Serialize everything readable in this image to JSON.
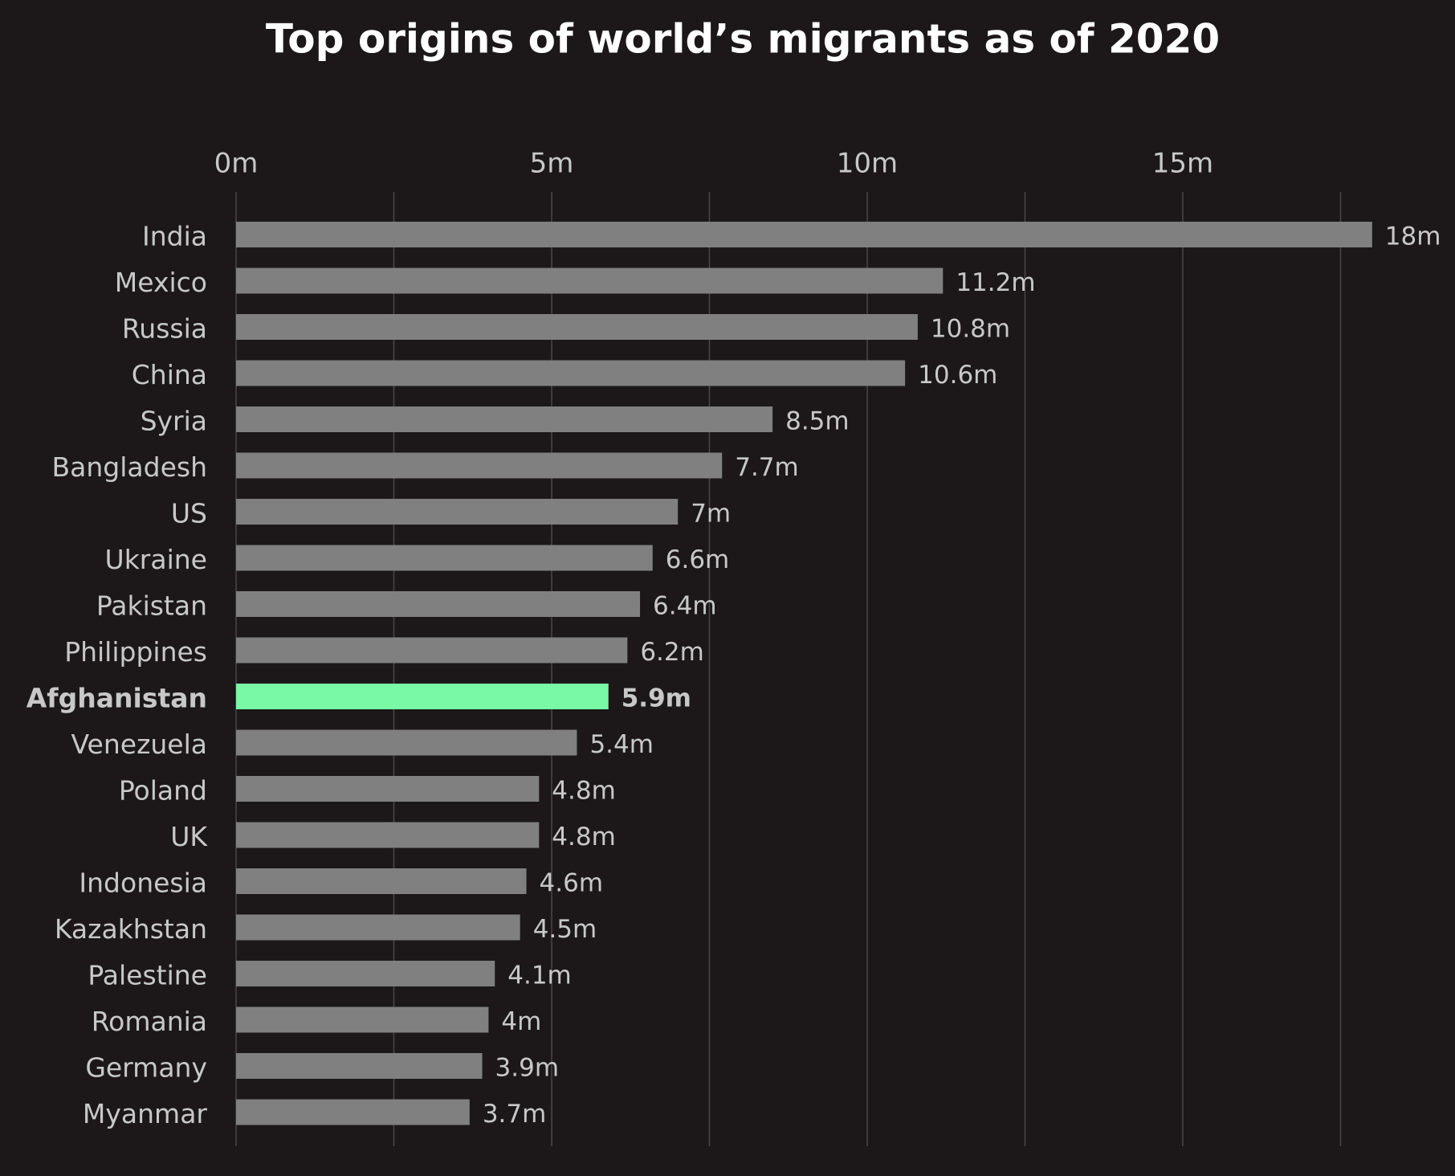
{
  "chart_data": {
    "type": "barh",
    "title": "Top origins of world’s migrants as of 2020",
    "categories": [
      "India",
      "Mexico",
      "Russia",
      "China",
      "Syria",
      "Bangladesh",
      "US",
      "Ukraine",
      "Pakistan",
      "Philippines",
      "Afghanistan",
      "Venezuela",
      "Poland",
      "UK",
      "Indonesia",
      "Kazakhstan",
      "Palestine",
      "Romania",
      "Germany",
      "Myanmar"
    ],
    "values": [
      18,
      11.2,
      10.8,
      10.6,
      8.5,
      7.7,
      7,
      6.6,
      6.4,
      6.2,
      5.9,
      5.4,
      4.8,
      4.8,
      4.6,
      4.5,
      4.1,
      4,
      3.9,
      3.7
    ],
    "value_labels": [
      "18m",
      "11.2m",
      "10.8m",
      "10.6m",
      "8.5m",
      "7.7m",
      "7m",
      "6.6m",
      "6.4m",
      "6.2m",
      "5.9m",
      "5.4m",
      "4.8m",
      "4.8m",
      "4.6m",
      "4.5m",
      "4.1m",
      "4m",
      "3.9m",
      "3.7m"
    ],
    "colors": [
      "#808080",
      "#808080",
      "#808080",
      "#808080",
      "#808080",
      "#808080",
      "#808080",
      "#808080",
      "#808080",
      "#808080",
      "#79f8a5",
      "#808080",
      "#808080",
      "#808080",
      "#808080",
      "#808080",
      "#808080",
      "#808080",
      "#808080",
      "#808080"
    ],
    "xlim": [
      0,
      19
    ],
    "xticks": [
      {
        "value": 0,
        "label": "0m"
      },
      {
        "value": 5,
        "label": "5m"
      },
      {
        "value": 10,
        "label": "10m"
      },
      {
        "value": 15,
        "label": "15m"
      }
    ],
    "xgrid_minor": [
      2.5,
      7.5,
      12.5,
      17.5
    ],
    "grid": true
  }
}
